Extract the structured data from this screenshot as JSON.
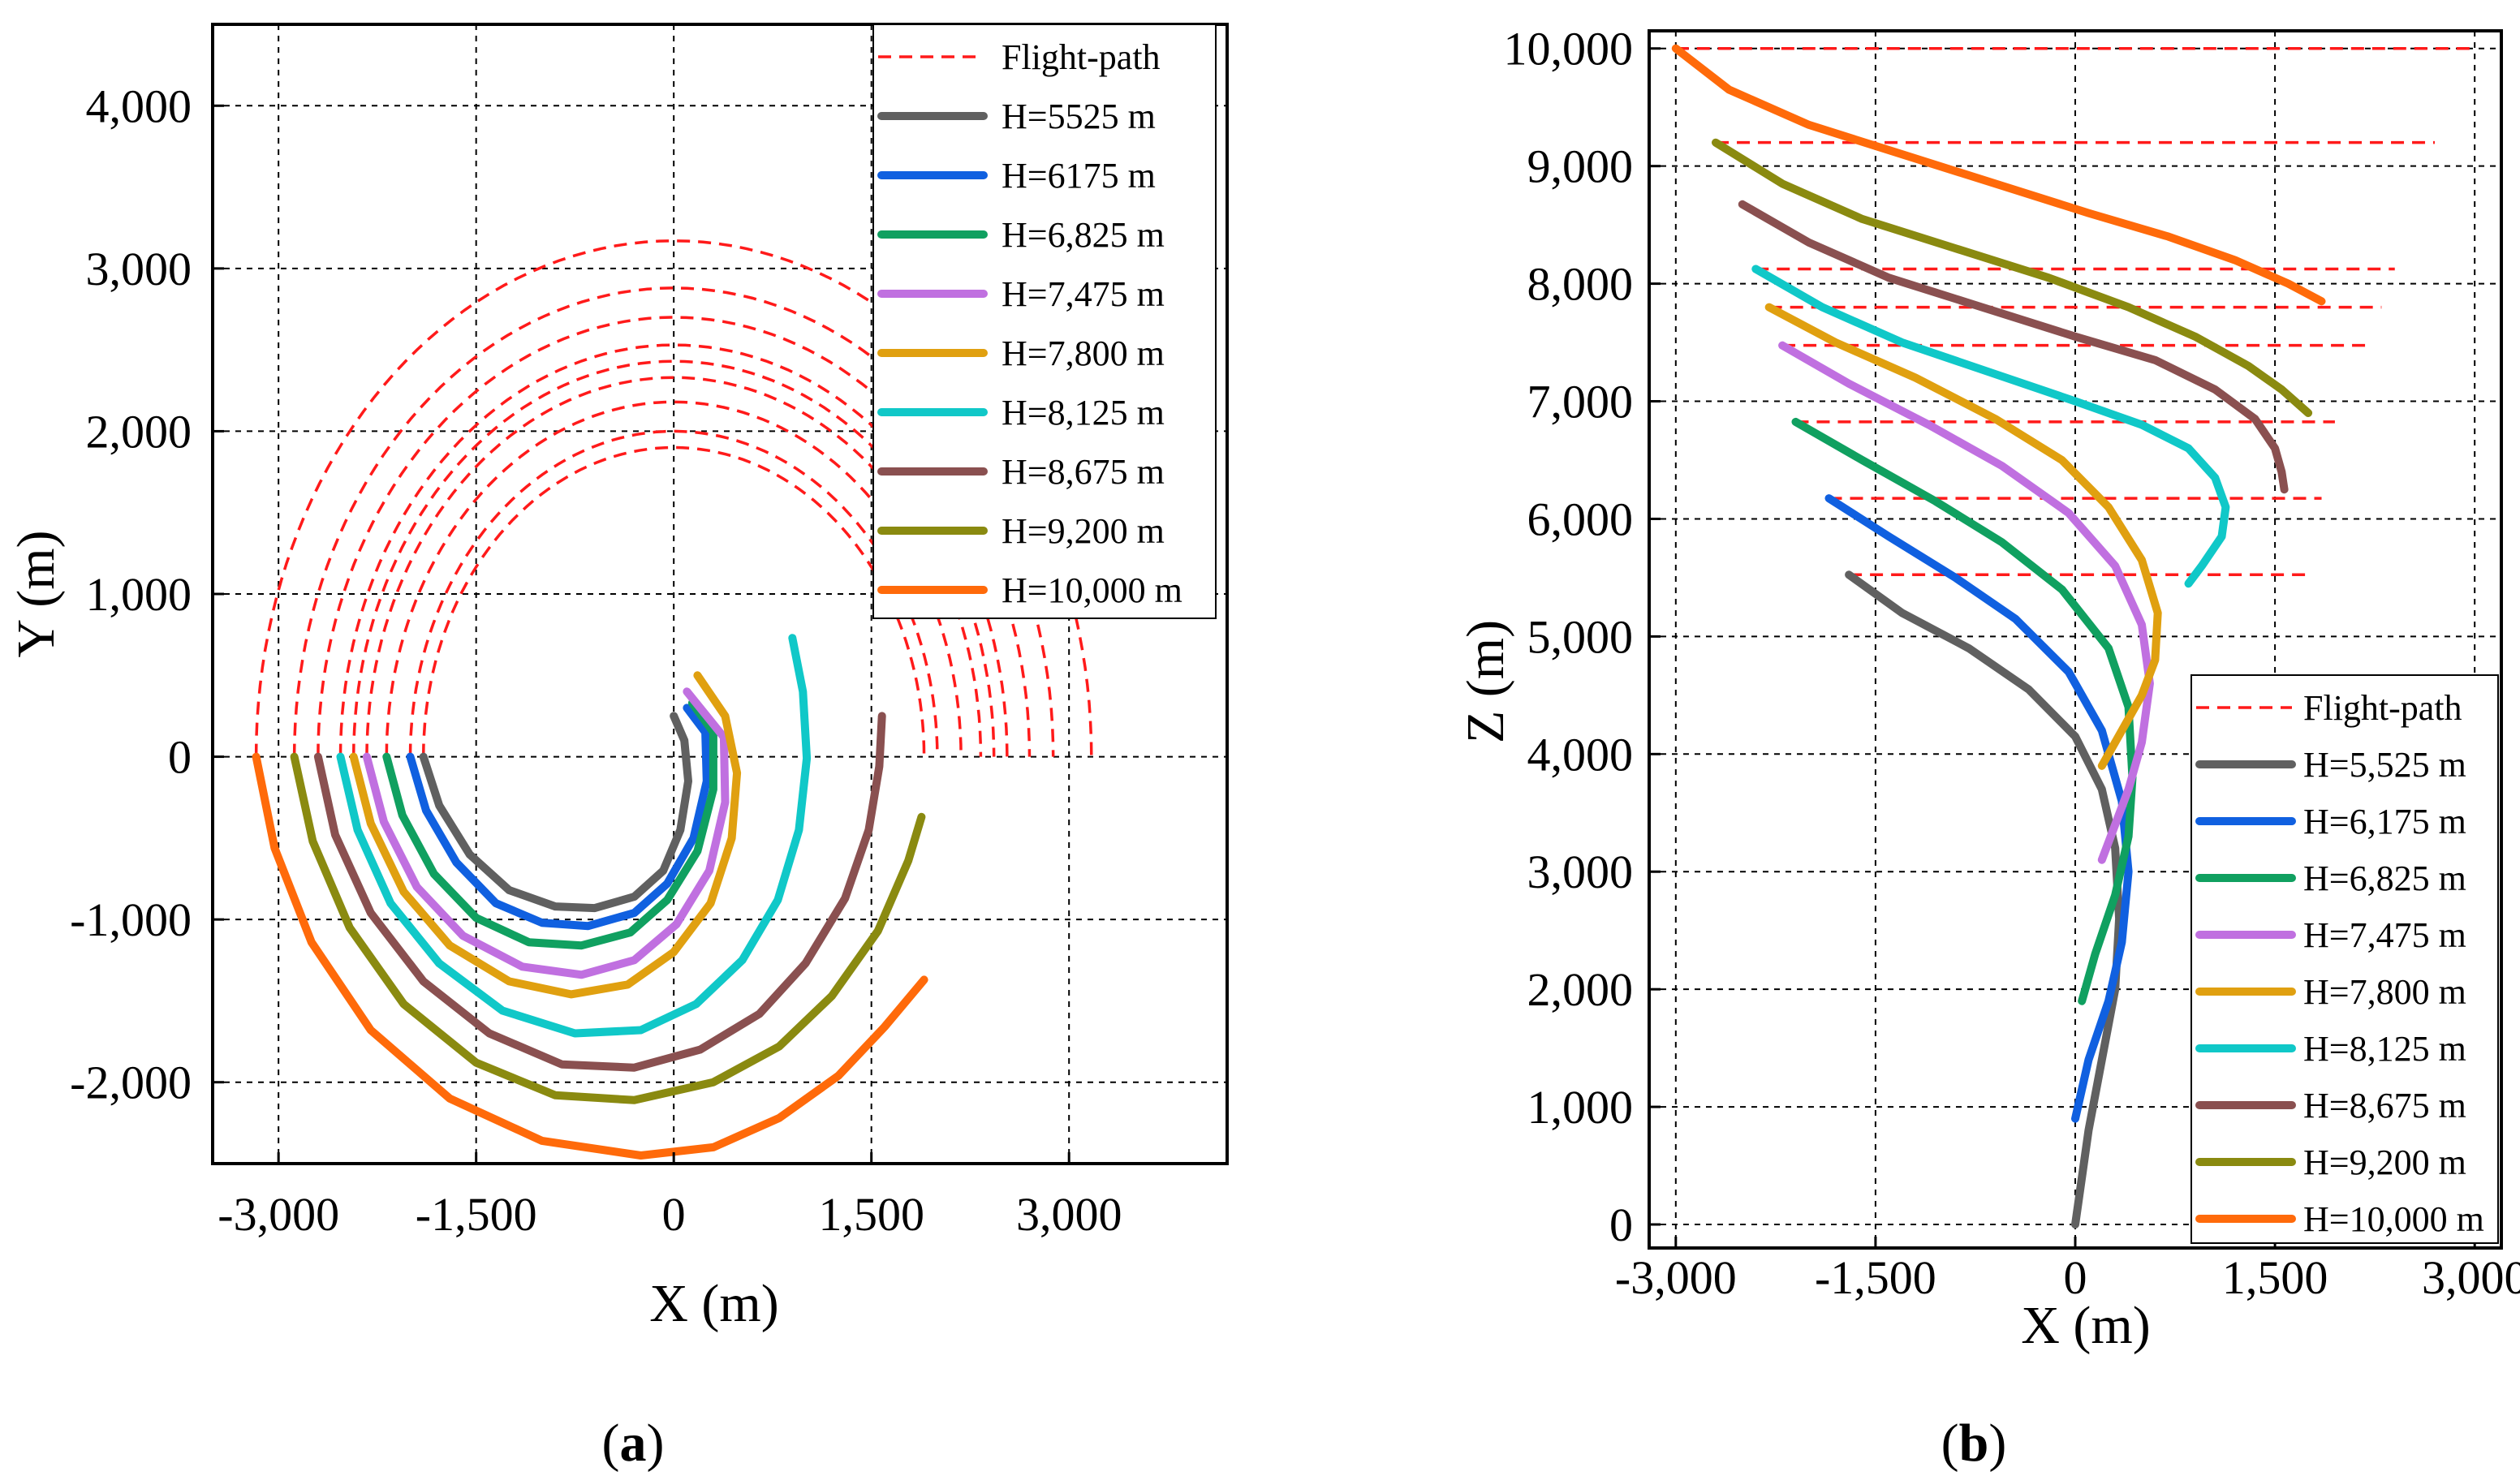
{
  "chart_data": [
    {
      "type": "line",
      "panel_label": "a",
      "xlabel": "X (m)",
      "ylabel": "Y (m)",
      "xlim": [
        -3500,
        4200
      ],
      "ylim": [
        -2500,
        4500
      ],
      "xticks": [
        -3000,
        -1500,
        0,
        1500,
        3000
      ],
      "xtick_labels": [
        "-3,000",
        "-1,500",
        "0",
        "1,500",
        "3,000"
      ],
      "yticks": [
        -2000,
        -1000,
        0,
        1000,
        2000,
        3000,
        4000
      ],
      "ytick_labels": [
        "-2,000",
        "-1,000",
        "0",
        "1,000",
        "2,000",
        "3,000",
        "4,000"
      ],
      "grid": true,
      "legend_position": "top-right",
      "legend": [
        "Flight-path",
        "H=5525 m",
        "H=6175 m",
        "H=6,825 m",
        "H=7,475 m",
        "H=7,800 m",
        "H=8,125 m",
        "H=8,675 m",
        "H=9,200 m",
        "H=10,000 m"
      ],
      "flight_path": {
        "name": "Flight-path",
        "color": "#ff1a1a",
        "circles": [
          {
            "radius": 1900,
            "center_x": 0
          },
          {
            "radius": 2000,
            "center_x": 0
          },
          {
            "radius": 2180,
            "center_x": 0
          },
          {
            "radius": 2330,
            "center_x": 0
          },
          {
            "radius": 2430,
            "center_x": 0
          },
          {
            "radius": 2530,
            "center_x": 0
          },
          {
            "radius": 2700,
            "center_x": 0
          },
          {
            "radius": 2880,
            "center_x": 0
          },
          {
            "radius": 3170,
            "center_x": 0
          }
        ],
        "upper_arc_from_deg": 0,
        "upper_arc_to_deg": 180,
        "right_arc_from_deg": 25,
        "right_arc_to_deg": 0
      },
      "series": [
        {
          "name": "H=5525 m",
          "color": "#606060",
          "x": [
            -1900,
            -1780,
            -1550,
            -1250,
            -900,
            -600,
            -300,
            -80,
            50,
            110,
            80,
            0
          ],
          "y": [
            0,
            -300,
            -600,
            -820,
            -920,
            -930,
            -860,
            -700,
            -450,
            -150,
            100,
            250
          ]
        },
        {
          "name": "H=6175 m",
          "color": "#1060e0",
          "x": [
            -2000,
            -1880,
            -1650,
            -1350,
            -1000,
            -650,
            -300,
            -50,
            150,
            250,
            240,
            100
          ],
          "y": [
            0,
            -330,
            -650,
            -900,
            -1020,
            -1040,
            -960,
            -780,
            -500,
            -150,
            150,
            300
          ]
        },
        {
          "name": "H=6,825 m",
          "color": "#10a060",
          "x": [
            -2180,
            -2060,
            -1820,
            -1500,
            -1100,
            -700,
            -330,
            -50,
            180,
            300,
            300,
            140
          ],
          "y": [
            0,
            -360,
            -720,
            -990,
            -1140,
            -1160,
            -1080,
            -880,
            -580,
            -200,
            150,
            330
          ]
        },
        {
          "name": "H=7,475 m",
          "color": "#c070e0",
          "x": [
            -2330,
            -2200,
            -1950,
            -1600,
            -1150,
            -700,
            -300,
            20,
            270,
            390,
            380,
            100
          ],
          "y": [
            0,
            -400,
            -800,
            -1100,
            -1290,
            -1340,
            -1250,
            -1030,
            -700,
            -280,
            120,
            400
          ]
        },
        {
          "name": "H=7,800 m",
          "color": "#e0a010",
          "x": [
            -2430,
            -2300,
            -2050,
            -1700,
            -1250,
            -780,
            -350,
            0,
            280,
            440,
            480,
            390,
            180
          ],
          "y": [
            0,
            -410,
            -830,
            -1160,
            -1380,
            -1460,
            -1400,
            -1200,
            -900,
            -500,
            -100,
            250,
            500
          ]
        },
        {
          "name": "H=8,125 m",
          "color": "#10c8c8",
          "x": [
            -2530,
            -2400,
            -2150,
            -1780,
            -1300,
            -750,
            -250,
            170,
            520,
            790,
            950,
            1010,
            980,
            900
          ],
          "y": [
            0,
            -450,
            -900,
            -1270,
            -1560,
            -1700,
            -1680,
            -1520,
            -1250,
            -880,
            -450,
            -10,
            400,
            730
          ]
        },
        {
          "name": "H=8,675 m",
          "color": "#8a5050",
          "x": [
            -2700,
            -2570,
            -2300,
            -1900,
            -1400,
            -850,
            -300,
            200,
            650,
            1000,
            1300,
            1480,
            1560,
            1580
          ],
          "y": [
            0,
            -480,
            -960,
            -1380,
            -1700,
            -1890,
            -1910,
            -1800,
            -1580,
            -1270,
            -870,
            -450,
            -60,
            250
          ]
        },
        {
          "name": "H=9,200 m",
          "color": "#8a8a10",
          "x": [
            -2880,
            -2740,
            -2460,
            -2050,
            -1500,
            -900,
            -300,
            300,
            800,
            1200,
            1550,
            1780,
            1880
          ],
          "y": [
            0,
            -520,
            -1050,
            -1520,
            -1880,
            -2080,
            -2110,
            -2000,
            -1780,
            -1470,
            -1070,
            -640,
            -370
          ]
        },
        {
          "name": "H=10,000 m",
          "color": "#ff6a0a",
          "x": [
            -3170,
            -3030,
            -2750,
            -2300,
            -1700,
            -1000,
            -250,
            300,
            800,
            1250,
            1600,
            1900
          ],
          "y": [
            0,
            -560,
            -1140,
            -1680,
            -2100,
            -2360,
            -2450,
            -2400,
            -2220,
            -1960,
            -1660,
            -1370
          ]
        }
      ]
    },
    {
      "type": "line",
      "panel_label": "b",
      "xlabel": "X (m)",
      "ylabel": "Z (m)",
      "xlim": [
        -3200,
        3200
      ],
      "ylim": [
        -200,
        10150
      ],
      "xticks": [
        -3000,
        -1500,
        0,
        1500,
        3000
      ],
      "xtick_labels": [
        "-3,000",
        "-1,500",
        "0",
        "1,500",
        "3,000"
      ],
      "yticks": [
        0,
        1000,
        2000,
        3000,
        4000,
        5000,
        6000,
        7000,
        8000,
        9000,
        10000
      ],
      "ytick_labels": [
        "0",
        "1,000",
        "2,000",
        "3,000",
        "4,000",
        "5,000",
        "6,000",
        "7,000",
        "8,000",
        "9,000",
        "10,000"
      ],
      "grid": true,
      "legend_position": "bottom-right",
      "legend": [
        "Flight-path",
        "H=5,525 m",
        "H=6,175 m",
        "H=6,825 m",
        "H=7,475 m",
        "H=7,800 m",
        "H=8,125 m",
        "H=8,675 m",
        "H=9,200 m",
        "H=10,000 m"
      ],
      "flight_path": {
        "name": "Flight-path",
        "color": "#ff1a1a",
        "lines": [
          {
            "z": 5525,
            "x_from": -1700,
            "x_to": 1750
          },
          {
            "z": 6175,
            "x_from": -1850,
            "x_to": 1850
          },
          {
            "z": 6825,
            "x_from": -2100,
            "x_to": 1950
          },
          {
            "z": 7475,
            "x_from": -2200,
            "x_to": 2200
          },
          {
            "z": 7800,
            "x_from": -2300,
            "x_to": 2300
          },
          {
            "z": 8125,
            "x_from": -2400,
            "x_to": 2400
          },
          {
            "z": 9200,
            "x_from": -2700,
            "x_to": 2700
          },
          {
            "z": 10000,
            "x_from": -3000,
            "x_to": 3000
          }
        ]
      },
      "series": [
        {
          "name": "H=5,525 m",
          "color": "#606060",
          "x": [
            -1700,
            -1300,
            -800,
            -350,
            0,
            200,
            300,
            330,
            300,
            200,
            100,
            0
          ],
          "z": [
            5525,
            5200,
            4900,
            4550,
            4150,
            3700,
            3200,
            2600,
            2000,
            1400,
            800,
            0
          ]
        },
        {
          "name": "H=6,175 m",
          "color": "#1060e0",
          "x": [
            -1850,
            -1400,
            -900,
            -450,
            -50,
            200,
            350,
            400,
            350,
            250,
            100,
            0
          ],
          "z": [
            6175,
            5850,
            5500,
            5150,
            4700,
            4200,
            3600,
            3000,
            2400,
            1900,
            1400,
            900
          ]
        },
        {
          "name": "H=6,825 m",
          "color": "#10a060",
          "x": [
            -2100,
            -1600,
            -1050,
            -550,
            -100,
            250,
            400,
            430,
            400,
            300,
            150,
            50
          ],
          "z": [
            6825,
            6500,
            6150,
            5800,
            5400,
            4900,
            4400,
            3800,
            3300,
            2800,
            2300,
            1900
          ]
        },
        {
          "name": "H=7,475 m",
          "color": "#c070e0",
          "x": [
            -2200,
            -1700,
            -1100,
            -550,
            -50,
            300,
            500,
            560,
            500,
            400,
            300,
            200
          ],
          "z": [
            7475,
            7150,
            6800,
            6450,
            6050,
            5600,
            5100,
            4600,
            4100,
            3700,
            3400,
            3100
          ]
        },
        {
          "name": "H=7,800 m",
          "color": "#e0a010",
          "x": [
            -2300,
            -1800,
            -1200,
            -600,
            -100,
            250,
            500,
            620,
            600,
            500,
            350,
            200
          ],
          "z": [
            7800,
            7500,
            7200,
            6850,
            6500,
            6100,
            5650,
            5200,
            4800,
            4500,
            4200,
            3900
          ]
        },
        {
          "name": "H=8,125 m",
          "color": "#10c8c8",
          "x": [
            -2400,
            -1900,
            -1300,
            -650,
            0,
            500,
            850,
            1050,
            1130,
            1100,
            950,
            850
          ],
          "z": [
            8125,
            7800,
            7500,
            7250,
            7000,
            6800,
            6600,
            6350,
            6100,
            5850,
            5600,
            5450
          ]
        },
        {
          "name": "H=8,675 m",
          "color": "#8a5050",
          "x": [
            -2500,
            -2000,
            -1400,
            -700,
            0,
            600,
            1050,
            1350,
            1500,
            1550,
            1570
          ],
          "z": [
            8675,
            8350,
            8050,
            7800,
            7550,
            7350,
            7100,
            6850,
            6600,
            6400,
            6250
          ]
        },
        {
          "name": "H=9,200 m",
          "color": "#8a8a10",
          "x": [
            -2700,
            -2200,
            -1600,
            -900,
            -200,
            400,
            900,
            1300,
            1550,
            1750
          ],
          "z": [
            9200,
            8850,
            8550,
            8300,
            8050,
            7800,
            7550,
            7300,
            7100,
            6900
          ]
        },
        {
          "name": "H=10,000 m",
          "color": "#ff6a0a",
          "x": [
            -3000,
            -2600,
            -2000,
            -1300,
            -600,
            100,
            700,
            1200,
            1600,
            1850
          ],
          "z": [
            10000,
            9650,
            9350,
            9100,
            8850,
            8600,
            8400,
            8200,
            8000,
            7850
          ]
        }
      ]
    }
  ]
}
